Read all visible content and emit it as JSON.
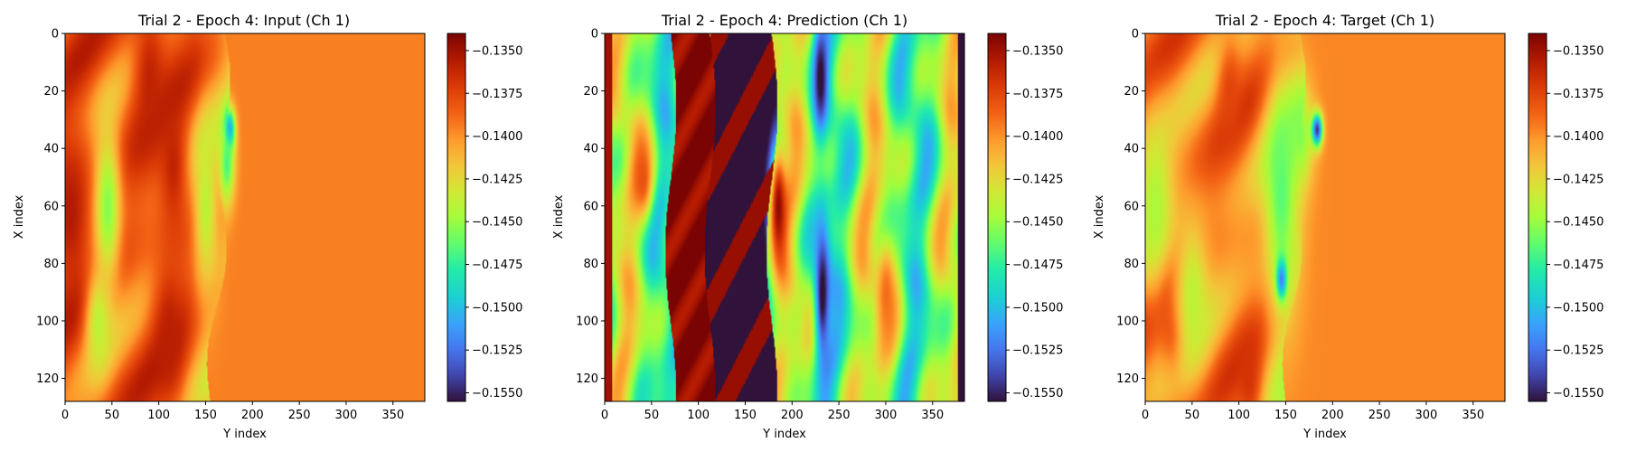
{
  "colormap": "turbo",
  "chart_data": [
    {
      "type": "heatmap",
      "title": "Trial 2 - Epoch 4: Input (Ch 1)",
      "xlabel": "Y index",
      "ylabel": "X index",
      "xlim": [
        0,
        384
      ],
      "ylim": [
        128,
        0
      ],
      "xticks": [
        0,
        50,
        100,
        150,
        200,
        250,
        300,
        350
      ],
      "yticks": [
        0,
        20,
        40,
        60,
        80,
        100,
        120
      ],
      "colorbar": {
        "vmin": -0.1555,
        "vmax": -0.134,
        "ticks": [
          "−0.1350",
          "−0.1375",
          "−0.1400",
          "−0.1425",
          "−0.1450",
          "−0.1475",
          "−0.1500",
          "−0.1525",
          "−0.1550"
        ]
      },
      "field": {
        "background": -0.1395,
        "front_y": 170,
        "left_base": -0.1385,
        "blobs": [
          {
            "y": 5,
            "x": 62,
            "sy": 18,
            "sx": 22,
            "v": -0.1355
          },
          {
            "y": 45,
            "x": 60,
            "sy": 10,
            "sx": 20,
            "v": -0.1455
          },
          {
            "y": 90,
            "x": 15,
            "sy": 14,
            "sx": 20,
            "v": -0.136
          },
          {
            "y": 110,
            "x": 105,
            "sy": 12,
            "sx": 18,
            "v": -0.1358
          },
          {
            "y": 115,
            "x": 45,
            "sy": 12,
            "sx": 18,
            "v": -0.136
          },
          {
            "y": 35,
            "x": 100,
            "sy": 10,
            "sx": 14,
            "v": -0.144
          },
          {
            "y": 175,
            "x": 33,
            "sy": 4,
            "sx": 5,
            "v": -0.153
          },
          {
            "y": 172,
            "x": 45,
            "sy": 6,
            "sx": 10,
            "v": -0.147
          },
          {
            "y": 150,
            "x": 60,
            "sy": 10,
            "sx": 22,
            "v": -0.144
          }
        ]
      }
    },
    {
      "type": "heatmap",
      "title": "Trial 2 - Epoch 4: Prediction (Ch 1)",
      "xlabel": "Y index",
      "ylabel": "X index",
      "xlim": [
        0,
        384
      ],
      "ylim": [
        128,
        0
      ],
      "xticks": [
        0,
        50,
        100,
        150,
        200,
        250,
        300,
        350
      ],
      "yticks": [
        0,
        20,
        40,
        60,
        80,
        100,
        120
      ],
      "colorbar": {
        "vmin": -0.1555,
        "vmax": -0.134,
        "ticks": [
          "−0.1350",
          "−0.1375",
          "−0.1400",
          "−0.1425",
          "−0.1450",
          "−0.1475",
          "−0.1500",
          "−0.1525",
          "−0.1550"
        ]
      },
      "field": {
        "background": -0.1455,
        "stripes": true,
        "dark_band_y": [
          112,
          178
        ],
        "red_band_y": [
          70,
          112
        ],
        "blobs": [
          {
            "y": 230,
            "x": 15,
            "sy": 5,
            "sx": 12,
            "v": -0.156
          },
          {
            "y": 232,
            "x": 90,
            "sy": 6,
            "sx": 18,
            "v": -0.156
          },
          {
            "y": 185,
            "x": 60,
            "sy": 6,
            "sx": 14,
            "v": -0.1345
          },
          {
            "y": 40,
            "x": 50,
            "sy": 8,
            "sx": 10,
            "v": -0.138
          },
          {
            "y": 300,
            "x": 90,
            "sy": 8,
            "sx": 14,
            "v": -0.139
          }
        ]
      }
    },
    {
      "type": "heatmap",
      "title": "Trial 2 - Epoch 4: Target (Ch 1)",
      "xlabel": "Y index",
      "ylabel": "X index",
      "xlim": [
        0,
        384
      ],
      "ylim": [
        128,
        0
      ],
      "xticks": [
        0,
        50,
        100,
        150,
        200,
        250,
        300,
        350
      ],
      "yticks": [
        0,
        20,
        40,
        60,
        80,
        100,
        120
      ],
      "colorbar": {
        "vmin": -0.1555,
        "vmax": -0.134,
        "ticks": [
          "−0.1350",
          "−0.1375",
          "−0.1400",
          "−0.1425",
          "−0.1450",
          "−0.1475",
          "−0.1500",
          "−0.1525",
          "−0.1550"
        ]
      },
      "field": {
        "background": -0.1397,
        "front_y": 165,
        "left_base": -0.1395,
        "blobs": [
          {
            "y": 145,
            "x": 55,
            "sy": 14,
            "sx": 30,
            "v": -0.1465
          },
          {
            "y": 165,
            "x": 35,
            "sy": 10,
            "sx": 12,
            "v": -0.1455
          },
          {
            "y": 145,
            "x": 85,
            "sy": 4,
            "sx": 5,
            "v": -0.152
          },
          {
            "y": 183,
            "x": 33,
            "sy": 4,
            "sx": 4,
            "v": -0.1545
          },
          {
            "y": 10,
            "x": 60,
            "sy": 14,
            "sx": 22,
            "v": -0.1445
          },
          {
            "y": 30,
            "x": 100,
            "sy": 10,
            "sx": 12,
            "v": -0.137
          },
          {
            "y": 90,
            "x": 20,
            "sy": 10,
            "sx": 14,
            "v": -0.1375
          },
          {
            "y": 50,
            "x": 90,
            "sy": 14,
            "sx": 20,
            "v": -0.144
          },
          {
            "y": 110,
            "x": 120,
            "sy": 10,
            "sx": 12,
            "v": -0.1368
          }
        ]
      }
    }
  ]
}
